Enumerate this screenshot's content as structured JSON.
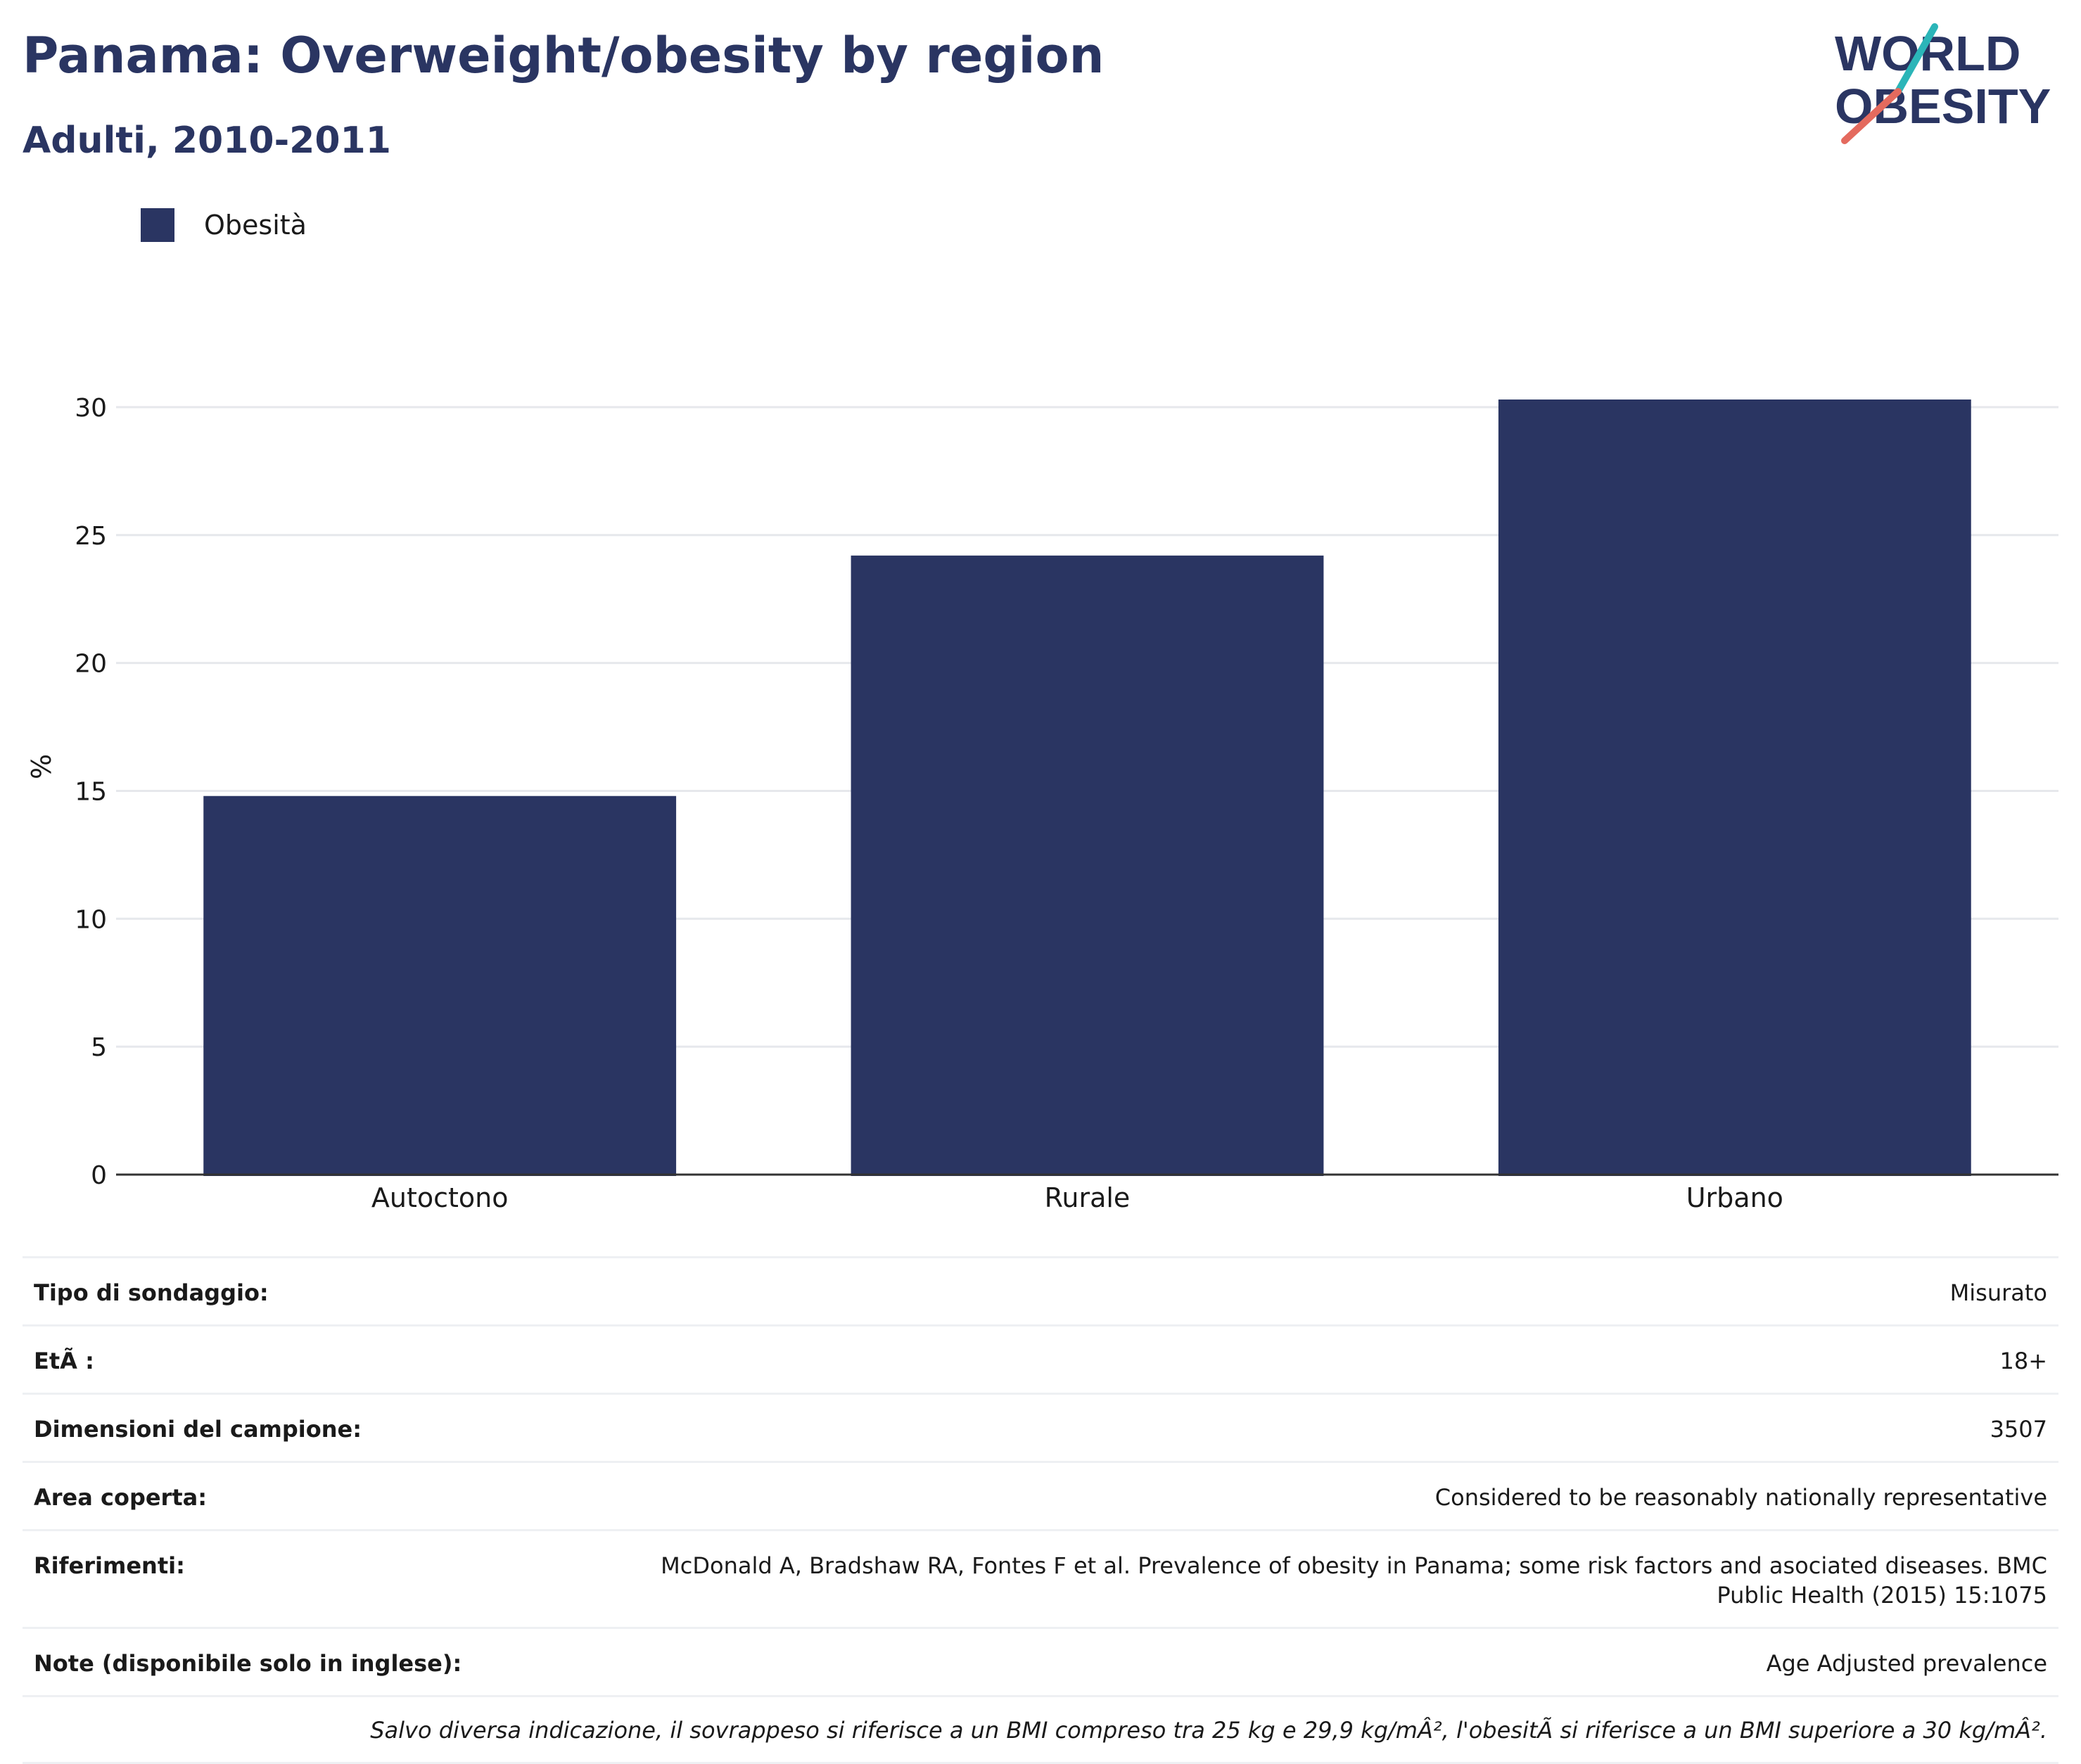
{
  "header": {
    "title": "Panama: Overweight/obesity by region",
    "subtitle": "Adulti, 2010-2011",
    "logo_line1": "WORLD",
    "logo_line2": "OBESITY"
  },
  "colors": {
    "bar": "#2a3562",
    "title": "#2a3562",
    "grid": "#e6e8ec",
    "axis": "#333333",
    "logo_teal": "#2bb5b8",
    "logo_coral": "#e46a5e"
  },
  "chart_data": {
    "type": "bar",
    "title": "Panama: Overweight/obesity by region",
    "subtitle": "Adulti, 2010-2011",
    "categories": [
      "Autoctono",
      "Rurale",
      "Urbano"
    ],
    "series": [
      {
        "name": "Obesità",
        "values": [
          14.8,
          24.2,
          30.3
        ]
      }
    ],
    "xlabel": "",
    "ylabel": "%",
    "ylim": [
      0,
      30.3
    ],
    "yticks": [
      0,
      5,
      10,
      15,
      20,
      25,
      30
    ],
    "grid": true,
    "legend": "top-left"
  },
  "meta": [
    {
      "key": "Tipo di sondaggio:",
      "value": "Misurato"
    },
    {
      "key": "EtÃ :",
      "value": "18+"
    },
    {
      "key": "Dimensioni del campione:",
      "value": "3507"
    },
    {
      "key": "Area coperta:",
      "value": "Considered to be reasonably nationally representative"
    },
    {
      "key": "Riferimenti:",
      "value": "McDonald A, Bradshaw RA, Fontes F et al. Prevalence of obesity in Panama; some risk factors and asociated diseases. BMC Public Health (2015) 15:1075"
    },
    {
      "key": "Note (disponibile solo in inglese):",
      "value": "Age Adjusted prevalence"
    }
  ],
  "footnote": "Salvo diversa indicazione, il sovrappeso si riferisce a un BMI compreso tra 25 kg e 29,9 kg/mÂ², l'obesitÃ  si riferisce a un BMI superiore a 30 kg/mÂ²."
}
